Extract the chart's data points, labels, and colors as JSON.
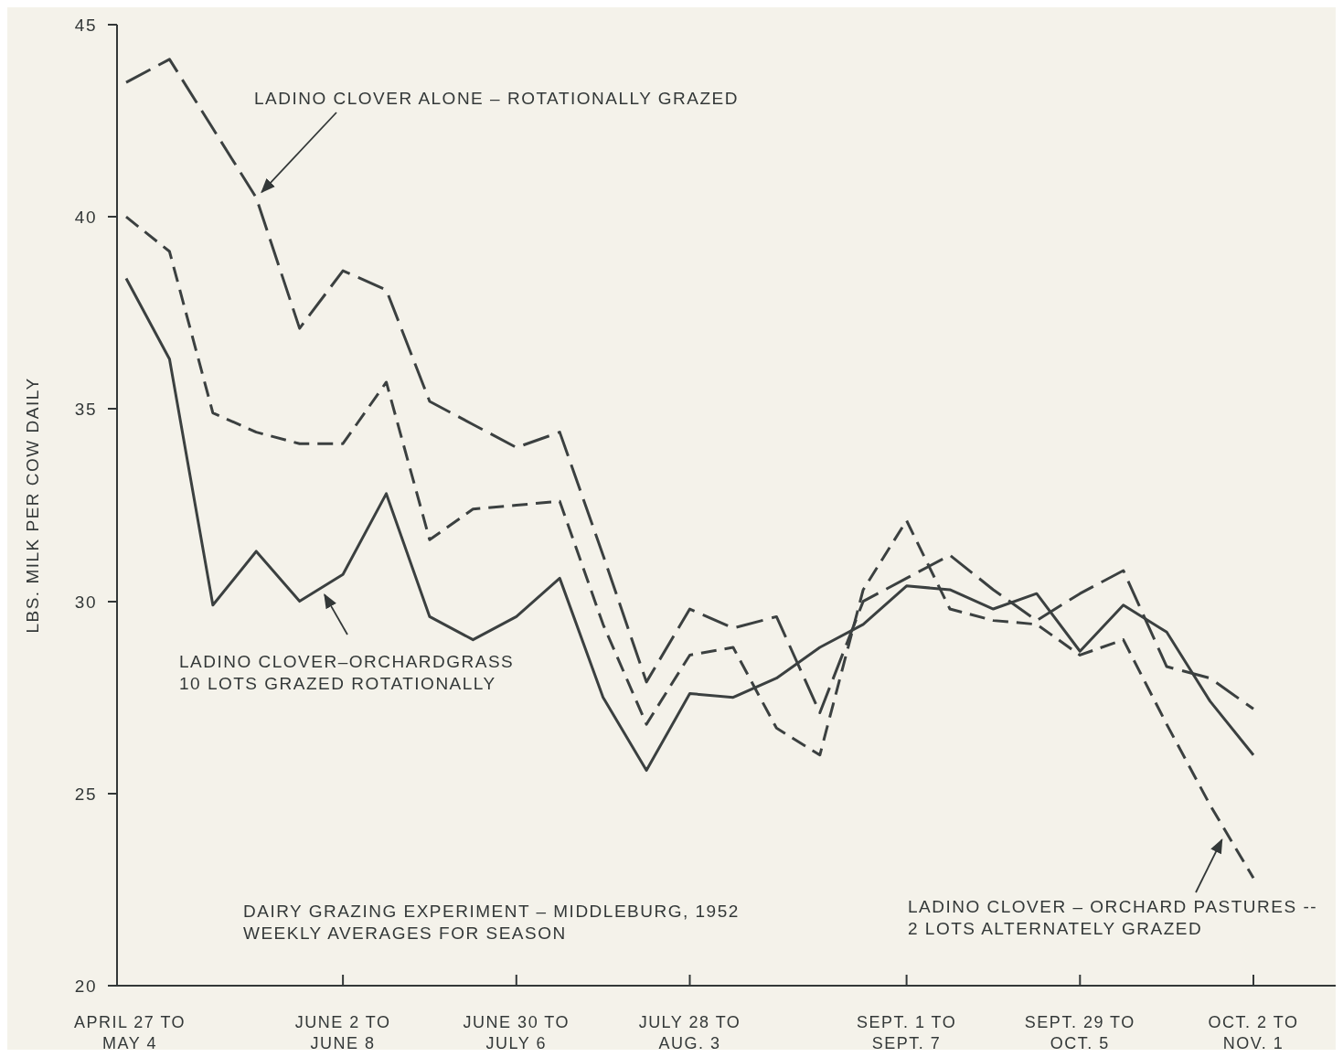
{
  "chart_data": {
    "type": "line",
    "ylabel": "LBS. MILK PER COW DAILY",
    "categories": [
      "APRIL 27 TO\nMAY 4",
      null,
      null,
      null,
      null,
      "JUNE 2 TO\nJUNE 8",
      null,
      null,
      null,
      "JUNE 30 TO\nJULY 6",
      null,
      null,
      null,
      "JULY 28 TO\nAUG. 3",
      null,
      null,
      null,
      null,
      "SEPT. 1 TO\nSEPT. 7",
      null,
      null,
      null,
      "SEPT. 29 TO\nOCT. 5",
      null,
      null,
      null,
      "OCT.  2 TO\nNOV. 1"
    ],
    "ylim": [
      20,
      45
    ],
    "yticks": [
      20,
      25,
      30,
      35,
      40,
      45
    ],
    "annotations": [
      "DAIRY GRAZING EXPERIMENT – MIDDLEBURG, 1952",
      "WEEKLY AVERAGES FOR SEASON"
    ],
    "series": [
      {
        "name": "LADINO CLOVER ALONE – ROTATIONALLY GRAZED",
        "color": "#3b4040",
        "line_style": "dashed",
        "values": [
          43.5,
          44.1,
          42.3,
          40.5,
          37.1,
          38.6,
          38.1,
          35.2,
          34.6,
          34.0,
          34.4,
          31.2,
          27.9,
          29.8,
          29.3,
          29.6,
          27.1,
          30.0,
          30.6,
          31.2,
          30.3,
          29.5,
          30.2,
          30.8,
          28.3,
          28.0,
          27.2
        ]
      },
      {
        "name": "LADINO CLOVER – ORCHARD PASTURES -- 2 LOTS ALTERNATELY GRAZED",
        "color": "#3b4040",
        "line_style": "dashed",
        "values": [
          40.0,
          39.1,
          34.9,
          34.4,
          34.1,
          34.1,
          35.7,
          31.6,
          32.4,
          32.5,
          32.6,
          29.4,
          26.8,
          28.6,
          28.8,
          26.7,
          26.0,
          30.3,
          32.1,
          29.8,
          29.5,
          29.4,
          28.6,
          29.0,
          26.8,
          24.7,
          22.8
        ]
      },
      {
        "name": "LADINO CLOVER–ORCHARDGRASS\n10 LOTS GRAZED ROTATIONALLY",
        "color": "#3b4040",
        "line_style": "solid",
        "values": [
          38.4,
          36.3,
          29.9,
          31.3,
          30.0,
          30.7,
          32.8,
          29.6,
          29.0,
          29.6,
          30.6,
          27.5,
          25.6,
          27.6,
          27.5,
          28.0,
          28.8,
          29.4,
          30.4,
          30.3,
          29.8,
          30.2,
          28.7,
          29.9,
          29.2,
          27.4,
          26.0
        ]
      }
    ]
  }
}
